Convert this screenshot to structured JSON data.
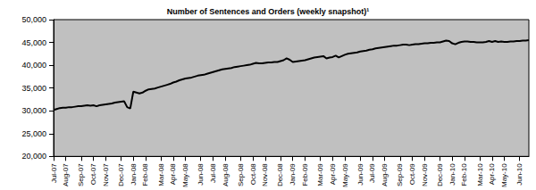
{
  "chart_data": {
    "type": "line",
    "title": "Number of Sentences and Orders (weekly snapshot)¹",
    "categories": [
      "Jul-07",
      null,
      null,
      null,
      "Aug-07",
      null,
      null,
      null,
      null,
      "Sep-07",
      null,
      null,
      null,
      "Oct-07",
      null,
      null,
      null,
      "Nov-07",
      null,
      null,
      null,
      null,
      "Dec-07",
      null,
      null,
      null,
      "Jan-08",
      null,
      null,
      null,
      "Feb-08",
      null,
      null,
      null,
      null,
      "Mar-08",
      null,
      null,
      null,
      "Apr-08",
      null,
      null,
      null,
      "May-08",
      null,
      null,
      null,
      null,
      "Jun-08",
      null,
      null,
      null,
      "Jul-08",
      null,
      null,
      null,
      "Aug-08",
      null,
      null,
      null,
      null,
      "Sep-08",
      null,
      null,
      null,
      "Oct-08",
      null,
      null,
      null,
      "Nov-08",
      null,
      null,
      null,
      null,
      "Dec-08",
      null,
      null,
      null,
      "Jan-09",
      null,
      null,
      null,
      "Feb-09",
      null,
      null,
      null,
      null,
      "Mar-09",
      null,
      null,
      null,
      "Apr-09",
      null,
      null,
      null,
      "May-09",
      null,
      null,
      null,
      null,
      "Jun-09",
      null,
      null,
      null,
      "Jul-09",
      null,
      null,
      null,
      "Aug-09",
      null,
      null,
      null,
      null,
      "Sep-09",
      null,
      null,
      null,
      "Oct-09",
      null,
      null,
      null,
      "Nov-09",
      null,
      null,
      null,
      null,
      "Dec-09",
      null,
      null,
      null,
      "Jan-10",
      null,
      null,
      null,
      "Feb-10",
      null,
      null,
      null,
      null,
      "Mar-10",
      null,
      null,
      null,
      "Apr-10",
      null,
      null,
      null,
      "May-10",
      null,
      null,
      null,
      null,
      "Jun-10",
      null,
      null,
      null
    ],
    "values": [
      30200,
      30400,
      30600,
      30700,
      30700,
      30800,
      30800,
      30900,
      31000,
      31000,
      31100,
      31200,
      31100,
      31200,
      31000,
      31200,
      31300,
      31400,
      31500,
      31600,
      31800,
      31900,
      32000,
      32100,
      30800,
      30500,
      34200,
      34000,
      33800,
      34000,
      34400,
      34700,
      34800,
      34900,
      35100,
      35300,
      35500,
      35700,
      35900,
      36200,
      36400,
      36700,
      36900,
      37100,
      37200,
      37300,
      37500,
      37700,
      37800,
      37900,
      38100,
      38300,
      38500,
      38700,
      38900,
      39100,
      39200,
      39300,
      39400,
      39600,
      39700,
      39800,
      39900,
      40000,
      40100,
      40300,
      40500,
      40400,
      40400,
      40500,
      40600,
      40600,
      40700,
      40700,
      40900,
      41100,
      41500,
      41200,
      40700,
      40800,
      40900,
      41000,
      41100,
      41300,
      41500,
      41700,
      41800,
      41900,
      42000,
      41500,
      41700,
      41800,
      42100,
      41700,
      42000,
      42300,
      42500,
      42600,
      42700,
      42800,
      43000,
      43100,
      43200,
      43400,
      43500,
      43700,
      43800,
      43900,
      44000,
      44100,
      44200,
      44300,
      44300,
      44400,
      44500,
      44500,
      44400,
      44500,
      44600,
      44600,
      44700,
      44800,
      44800,
      44900,
      44900,
      45000,
      45000,
      45200,
      45400,
      45300,
      44800,
      44600,
      44900,
      45100,
      45200,
      45200,
      45100,
      45100,
      45000,
      45000,
      45000,
      45100,
      45300,
      45100,
      45300,
      45100,
      45200,
      45100,
      45100,
      45200,
      45200,
      45300,
      45300,
      45400,
      45400,
      45500
    ],
    "color": "#000000",
    "ylim": [
      20000,
      50000
    ],
    "yticks": [
      {
        "value": 20000,
        "label": "20,000"
      },
      {
        "value": 25000,
        "label": "25,000"
      },
      {
        "value": 30000,
        "label": "30,000"
      },
      {
        "value": 35000,
        "label": "35,000"
      },
      {
        "value": 40000,
        "label": "40,000"
      },
      {
        "value": 45000,
        "label": "45,000"
      },
      {
        "value": 50000,
        "label": "50,000"
      }
    ],
    "grid": false
  }
}
